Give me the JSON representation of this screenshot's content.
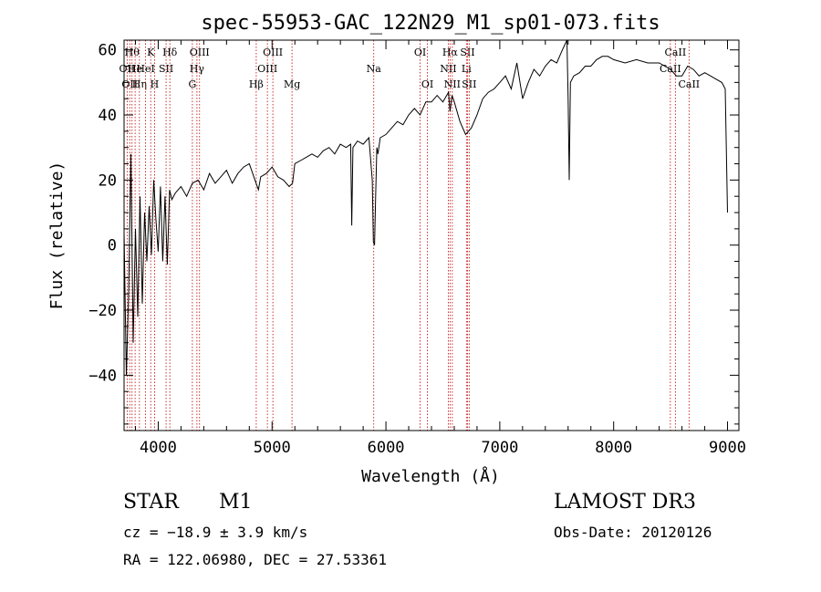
{
  "chart_data": {
    "type": "line",
    "title": "spec-55953-GAC_122N29_M1_sp01-073.fits",
    "xlabel": "Wavelength (Å)",
    "ylabel": "Flux (relative)",
    "xlim": [
      3700,
      9100
    ],
    "ylim": [
      -57,
      63
    ],
    "xticks": [
      4000,
      5000,
      6000,
      7000,
      8000,
      9000
    ],
    "yticks": [
      -40,
      -20,
      0,
      20,
      40,
      60
    ],
    "grid": false,
    "series": [
      {
        "color": "#000000",
        "x": [
          3700,
          3720,
          3740,
          3760,
          3780,
          3800,
          3820,
          3840,
          3860,
          3880,
          3900,
          3920,
          3940,
          3960,
          3980,
          4000,
          4020,
          4040,
          4060,
          4080,
          4100,
          4120,
          4150,
          4200,
          4250,
          4300,
          4350,
          4400,
          4450,
          4500,
          4550,
          4600,
          4650,
          4700,
          4750,
          4800,
          4850,
          4880,
          4900,
          4950,
          5000,
          5050,
          5100,
          5150,
          5180,
          5200,
          5250,
          5300,
          5350,
          5400,
          5450,
          5500,
          5550,
          5600,
          5650,
          5690,
          5700,
          5710,
          5750,
          5800,
          5850,
          5880,
          5890,
          5900,
          5910,
          5920,
          5930,
          5950,
          6000,
          6050,
          6100,
          6150,
          6200,
          6250,
          6300,
          6350,
          6400,
          6450,
          6500,
          6550,
          6563,
          6580,
          6600,
          6650,
          6700,
          6750,
          6800,
          6850,
          6900,
          6950,
          7000,
          7050,
          7100,
          7150,
          7200,
          7250,
          7300,
          7350,
          7400,
          7450,
          7500,
          7550,
          7590,
          7600,
          7610,
          7620,
          7650,
          7700,
          7750,
          7800,
          7850,
          7900,
          7950,
          8000,
          8100,
          8200,
          8300,
          8400,
          8500,
          8550,
          8600,
          8650,
          8700,
          8750,
          8800,
          8850,
          8900,
          8950,
          8980,
          9000
        ],
        "y": [
          4,
          -40,
          -15,
          28,
          -30,
          5,
          -22,
          15,
          -18,
          10,
          -5,
          12,
          -3,
          20,
          8,
          -2,
          18,
          -5,
          15,
          -6,
          17,
          14,
          16,
          18,
          15,
          19,
          20,
          17,
          22,
          19,
          21,
          23,
          19,
          22,
          24,
          25,
          20,
          17,
          21,
          22,
          24,
          21,
          20,
          18,
          19,
          25,
          26,
          27,
          28,
          27,
          29,
          30,
          28,
          31,
          30,
          31,
          6,
          30,
          32,
          31,
          33,
          20,
          1,
          0,
          15,
          30,
          28,
          33,
          34,
          36,
          38,
          37,
          40,
          42,
          40,
          44,
          44,
          46,
          44,
          47,
          41,
          46,
          44,
          38,
          34,
          36,
          40,
          45,
          47,
          48,
          50,
          52,
          48,
          56,
          45,
          50,
          54,
          52,
          55,
          57,
          56,
          60,
          63,
          45,
          20,
          50,
          52,
          53,
          55,
          55,
          57,
          58,
          58,
          57,
          56,
          57,
          56,
          56,
          54,
          52,
          52,
          55,
          54,
          52,
          53,
          52,
          51,
          50,
          48,
          10
        ]
      }
    ],
    "line_marks": [
      {
        "x": 3727,
        "label": "OII",
        "row": 1
      },
      {
        "x": 3750,
        "label": "OII",
        "row": 2
      },
      {
        "x": 3770,
        "label": "Hθ",
        "row": 0
      },
      {
        "x": 3797,
        "label": "He",
        "row": 1
      },
      {
        "x": 3835,
        "label": "Hη",
        "row": 2
      },
      {
        "x": 3889,
        "label": "HeI",
        "row": 1
      },
      {
        "x": 3934,
        "label": "K",
        "row": 0
      },
      {
        "x": 3968,
        "label": "H",
        "row": 2
      },
      {
        "x": 4069,
        "label": "SII",
        "row": 1
      },
      {
        "x": 4102,
        "label": "Hδ",
        "row": 0
      },
      {
        "x": 4300,
        "label": "G",
        "row": 2
      },
      {
        "x": 4340,
        "label": "Hγ",
        "row": 1
      },
      {
        "x": 4363,
        "label": "OIII",
        "row": 0
      },
      {
        "x": 4861,
        "label": "Hβ",
        "row": 2
      },
      {
        "x": 4959,
        "label": "OIII",
        "row": 1
      },
      {
        "x": 5007,
        "label": "OIII",
        "row": 0
      },
      {
        "x": 5175,
        "label": "Mg",
        "row": 2
      },
      {
        "x": 5893,
        "label": "Na",
        "row": 1
      },
      {
        "x": 6300,
        "label": "OI",
        "row": 0
      },
      {
        "x": 6364,
        "label": "OI",
        "row": 2
      },
      {
        "x": 6548,
        "label": "NII",
        "row": 1
      },
      {
        "x": 6563,
        "label": "Hα",
        "row": 0
      },
      {
        "x": 6583,
        "label": "NII",
        "row": 2
      },
      {
        "x": 6707,
        "label": "Li",
        "row": 1
      },
      {
        "x": 6716,
        "label": "SII",
        "row": 0
      },
      {
        "x": 6731,
        "label": "SII",
        "row": 2
      },
      {
        "x": 8498,
        "label": "CaII",
        "row": 1
      },
      {
        "x": 8542,
        "label": "CaII",
        "row": 0
      },
      {
        "x": 8662,
        "label": "CaII",
        "row": 2
      }
    ]
  },
  "info": {
    "object_class": "STAR",
    "subclass": "M1",
    "survey": "LAMOST DR3",
    "cz": "cz = −18.9 ± 3.9 km/s",
    "obs_date": "Obs-Date: 20120126",
    "coords": "RA = 122.06980, DEC =  27.53361"
  }
}
